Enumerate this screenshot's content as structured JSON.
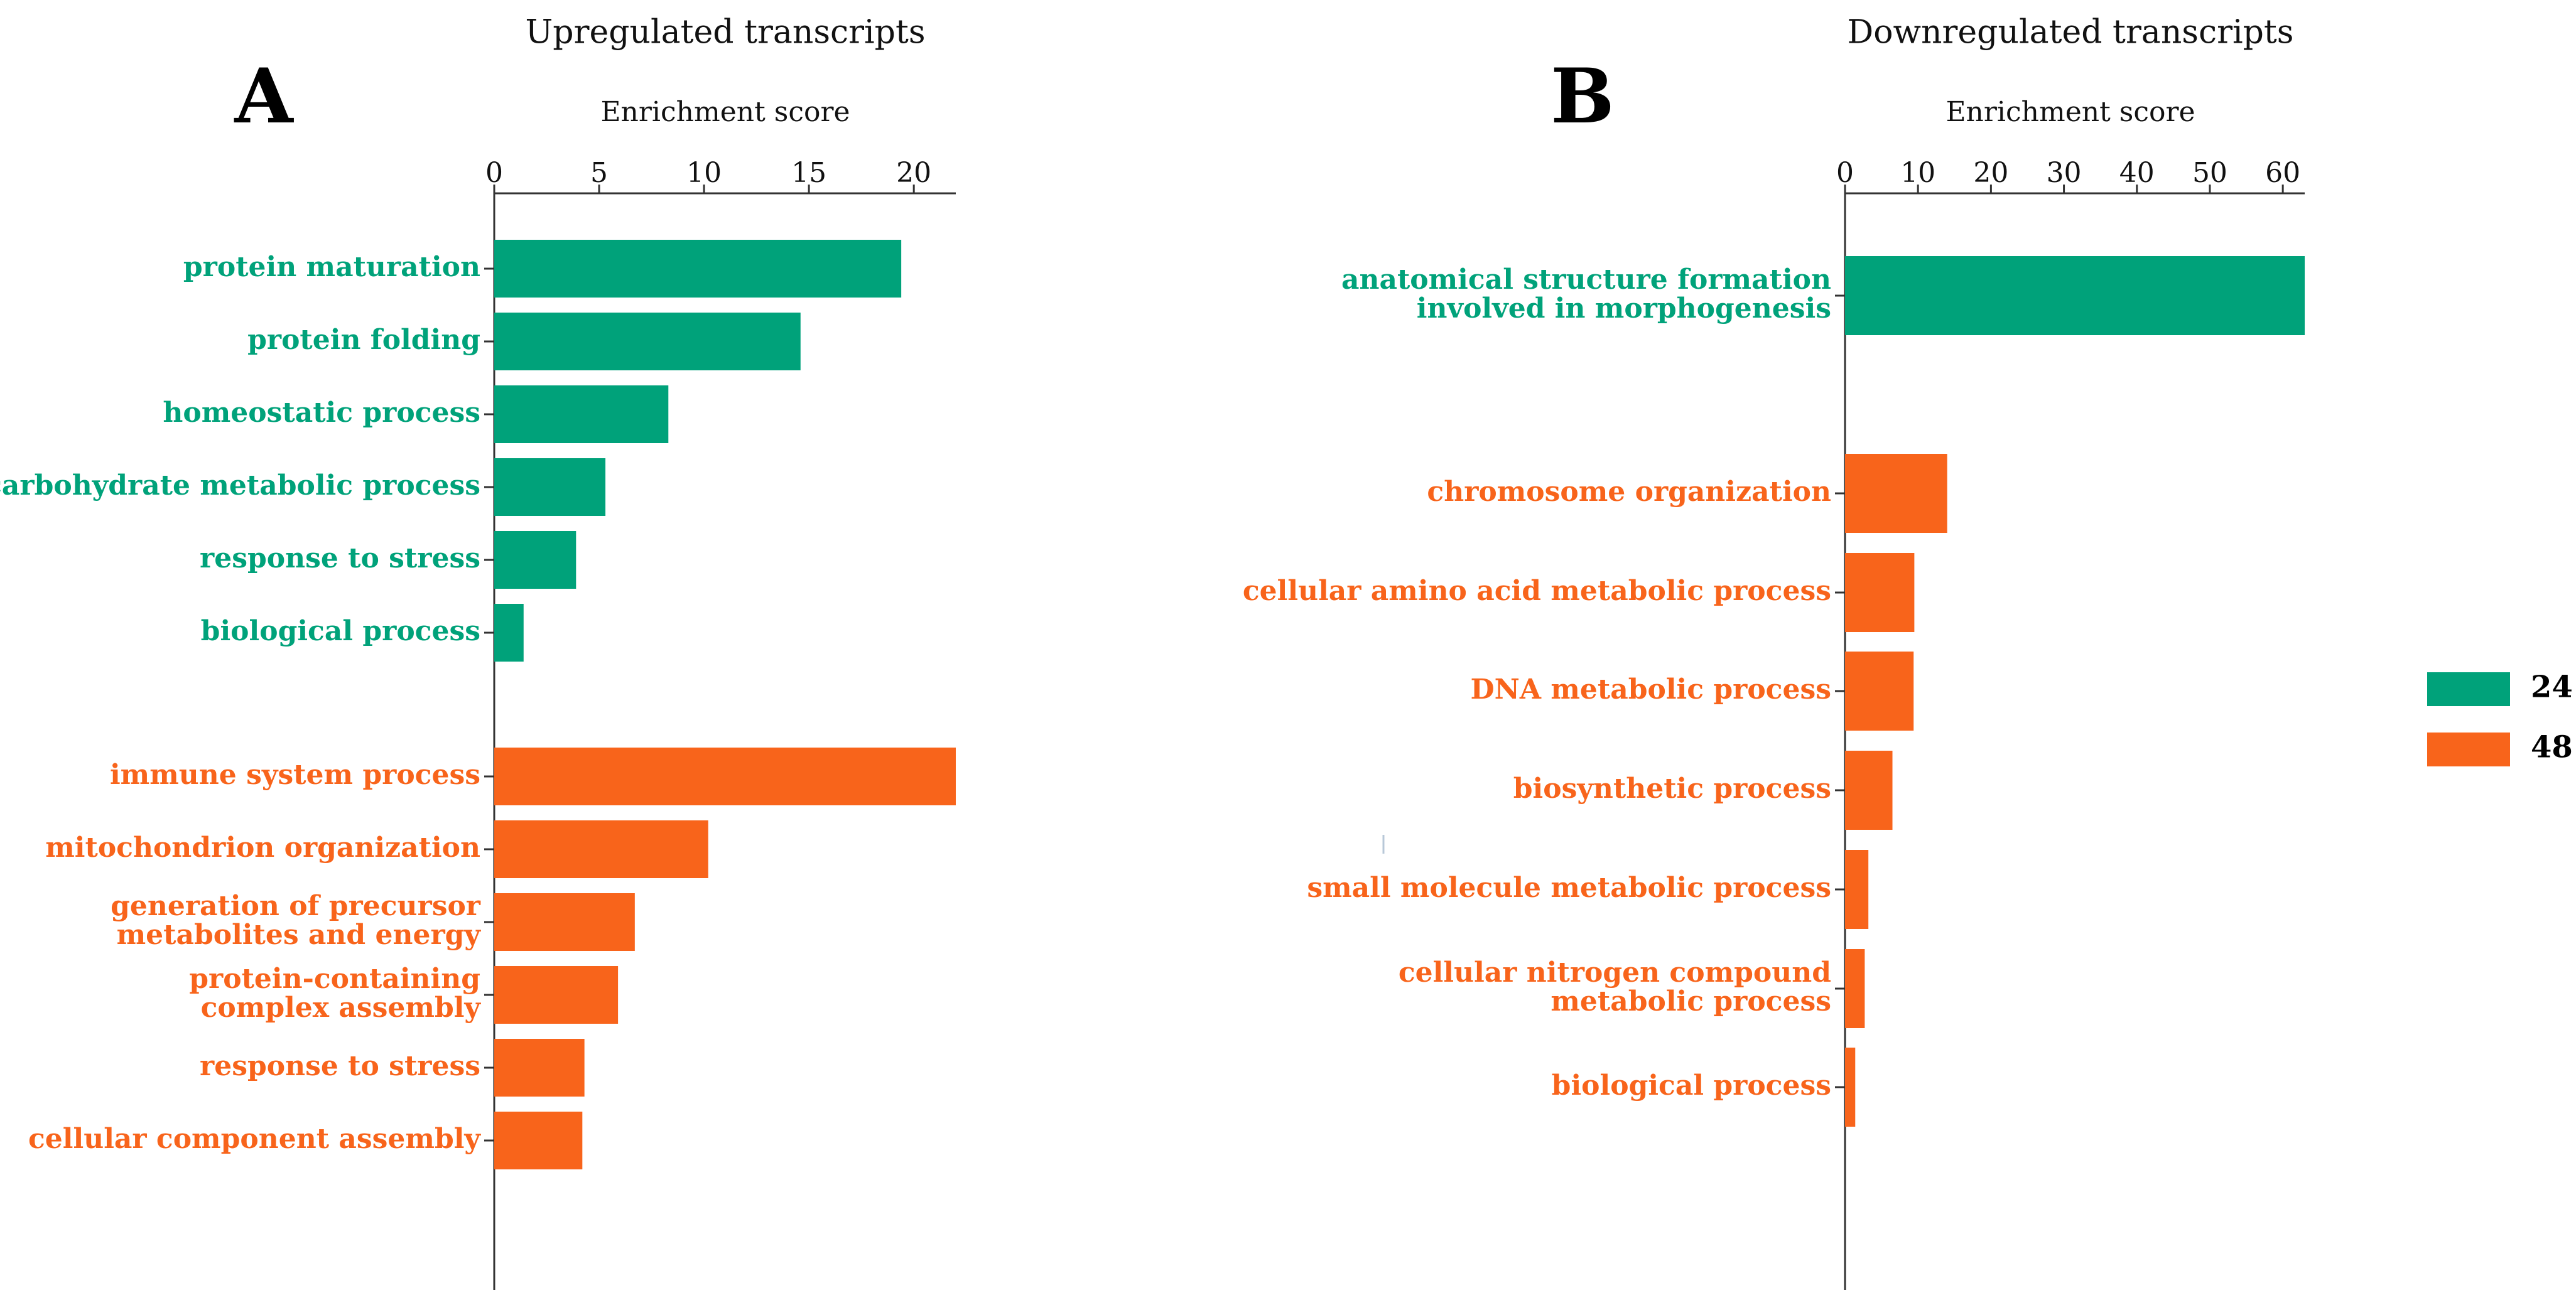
{
  "chart_data": [
    {
      "type": "bar",
      "orientation": "horizontal",
      "panel_letter": "A",
      "title": "Upregulated transcripts",
      "xlabel": "Enrichment score",
      "xlim": [
        0,
        22
      ],
      "xticks": [
        0,
        5,
        10,
        15,
        20
      ],
      "groups": [
        {
          "series": "24",
          "categories": [
            [
              "protein maturation"
            ],
            [
              "protein folding"
            ],
            [
              "homeostatic process"
            ],
            [
              "carbohydrate metabolic process"
            ],
            [
              "response to stress"
            ],
            [
              "biological process"
            ]
          ],
          "values": [
            19.4,
            14.6,
            8.3,
            5.3,
            3.9,
            1.4
          ]
        },
        {
          "series": "48",
          "categories": [
            [
              "immune system process"
            ],
            [
              "mitochondrion organization"
            ],
            [
              "generation of precursor",
              "metabolites and energy"
            ],
            [
              "protein-containing",
              "complex assembly"
            ],
            [
              "response to stress"
            ],
            [
              "cellular component assembly"
            ]
          ],
          "values": [
            22.0,
            10.2,
            6.7,
            5.9,
            4.3,
            4.2
          ]
        }
      ]
    },
    {
      "type": "bar",
      "orientation": "horizontal",
      "panel_letter": "B",
      "title": "Downregulated transcripts",
      "xlabel": "Enrichment score",
      "xlim": [
        0,
        63
      ],
      "xticks": [
        0,
        10,
        20,
        30,
        40,
        50,
        60
      ],
      "groups": [
        {
          "series": "24",
          "categories": [
            [
              "anatomical structure formation",
              "involved in morphogenesis"
            ]
          ],
          "values": [
            63.0
          ]
        },
        {
          "series": "48",
          "categories": [
            [
              "chromosome organization"
            ],
            [
              "cellular amino acid metabolic process"
            ],
            [
              "DNA metabolic process"
            ],
            [
              "biosynthetic process"
            ],
            [
              "small molecule metabolic process"
            ],
            [
              "cellular nitrogen compound",
              "metabolic process"
            ],
            [
              "biological process"
            ]
          ],
          "values": [
            14.0,
            9.5,
            9.4,
            6.5,
            3.2,
            2.7,
            1.4
          ]
        }
      ]
    }
  ],
  "legend": {
    "items": [
      {
        "label": "24",
        "color": "#00a27a"
      },
      {
        "label": "48",
        "color": "#f8641b"
      }
    ]
  },
  "colors": {
    "24": "#00a27a",
    "48": "#f8641b"
  }
}
